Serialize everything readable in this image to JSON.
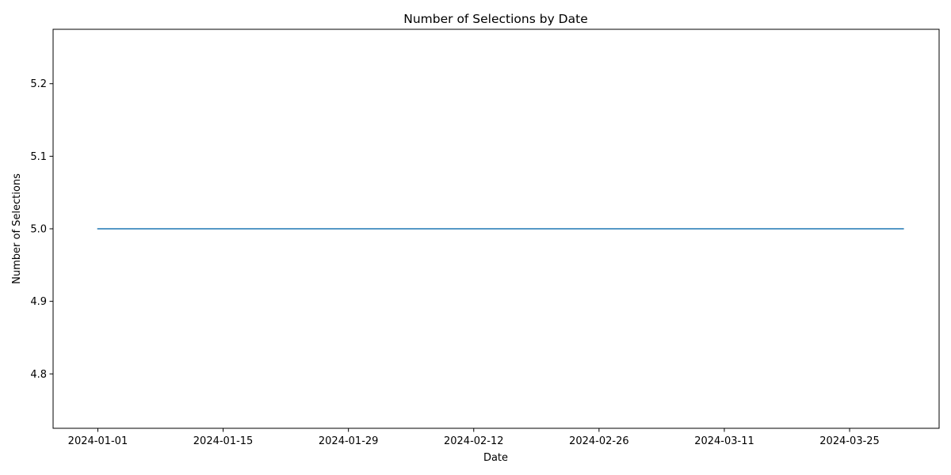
{
  "chart_data": {
    "type": "line",
    "title": "Number of Selections by Date",
    "xlabel": "Date",
    "ylabel": "Number of Selections",
    "x_start": "2024-01-01",
    "x_end": "2024-03-31",
    "xlim": [
      "2023-12-27",
      "2024-04-04"
    ],
    "ylim": [
      4.725,
      5.275
    ],
    "x_ticks": [
      "2024-01-01",
      "2024-01-15",
      "2024-01-29",
      "2024-02-12",
      "2024-02-26",
      "2024-03-11",
      "2024-03-25"
    ],
    "y_ticks": [
      "4.8",
      "4.9",
      "5.0",
      "5.1",
      "5.2"
    ],
    "grid": false,
    "series": [
      {
        "color": "#1f77b4",
        "points": [
          {
            "x": "2024-01-01",
            "y": 5.0
          },
          {
            "x": "2024-03-31",
            "y": 5.0
          }
        ]
      }
    ]
  }
}
